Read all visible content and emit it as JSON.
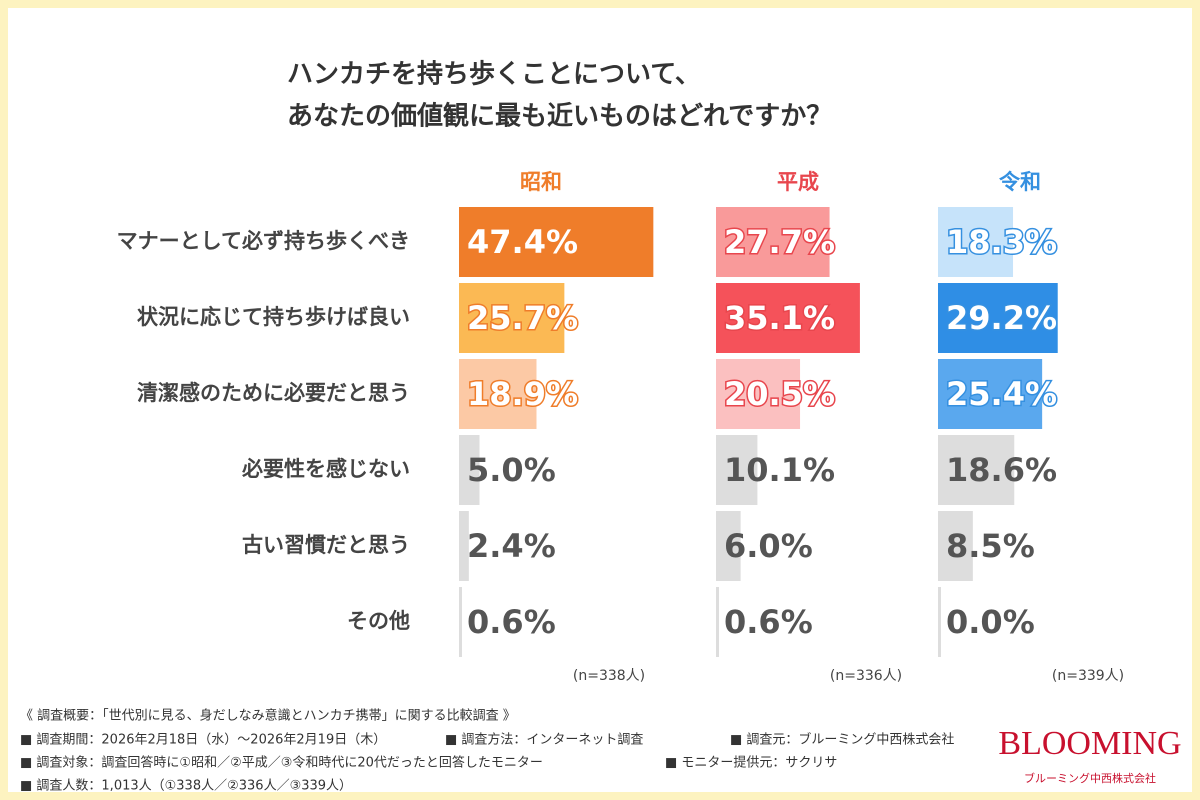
{
  "chart_data": {
    "type": "bar",
    "orientation": "horizontal",
    "title": [
      "ハンカチを持ち歩くことについて、",
      "あなたの価値観に最も近いものはどれですか？"
    ],
    "categories": [
      "マナーとして必ず持ち歩くべき",
      "状況に応じて持ち歩けば良い",
      "清潔感のために必要だと思う",
      "必要性を感じない",
      "古い習慣だと思う",
      "その他"
    ],
    "series": [
      {
        "name": "昭和",
        "color": "#ef7d2a",
        "sample": "(n=338人)",
        "values": [
          47.4,
          25.7,
          18.9,
          5.0,
          2.4,
          0.6
        ],
        "value_labels": [
          "47.4%",
          "25.7%",
          "18.9%",
          "5.0%",
          "2.4%",
          "0.6%"
        ],
        "colors": [
          "#ef7d2a",
          "#fbb954",
          "#fcc9a5",
          "#dddddd",
          "#dddddd",
          "#dddddd"
        ]
      },
      {
        "name": "平成",
        "color": "#e8464d",
        "sample": "(n=336人)",
        "values": [
          27.7,
          35.1,
          20.5,
          10.1,
          6.0,
          0.6
        ],
        "value_labels": [
          "27.7%",
          "35.1%",
          "20.5%",
          "10.1%",
          "6.0%",
          "0.6%"
        ],
        "colors": [
          "#f99a9a",
          "#f5525a",
          "#fbc0c0",
          "#dddddd",
          "#dddddd",
          "#dddddd"
        ]
      },
      {
        "name": "令和",
        "color": "#3590e0",
        "sample": "(n=339人)",
        "values": [
          18.3,
          29.2,
          25.4,
          18.6,
          8.5,
          0.0
        ],
        "value_labels": [
          "18.3%",
          "29.2%",
          "25.4%",
          "18.6%",
          "8.5%",
          "0.0%"
        ],
        "colors": [
          "#c6e3fa",
          "#2f8ee5",
          "#5aa8ee",
          "#dddddd",
          "#dddddd",
          "#dddddd"
        ]
      }
    ]
  },
  "footer": {
    "overview": "《 調査概要：「世代別に見る、身だしなみ意識とハンカチ携帯」に関する比較調査 》",
    "period": "■ 調査期間：2026年2月18日（水）〜2026年2月19日（木）",
    "method": "■ 調査方法：インターネット調査",
    "source": "■ 調査元：ブルーミング中西株式会社",
    "target": "■ 調査対象：調査回答時に①昭和／②平成／③令和時代に20代だったと回答したモニター",
    "provider": "■ モニター提供元：サクリサ",
    "count": "■ 調査人数：1,013人（①338人／②336人／③339人）",
    "logo": "BLOOMING",
    "company": "ブルーミング中西株式会社"
  }
}
